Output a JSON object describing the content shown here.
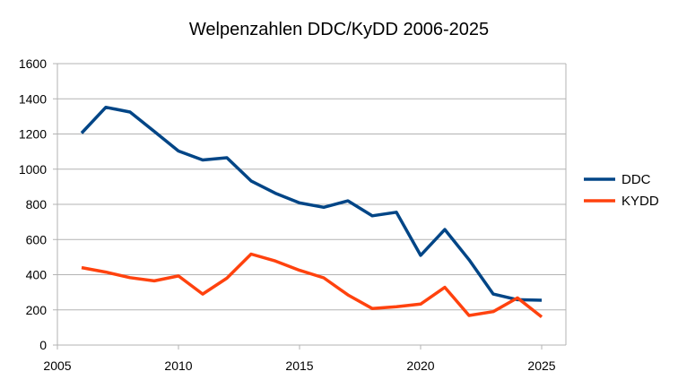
{
  "chart_data": {
    "type": "line",
    "title": "Welpenzahlen DDC/KyDD 2006-2025",
    "xlabel": "",
    "ylabel": "",
    "xlim": [
      2005,
      2026
    ],
    "ylim": [
      0,
      1600
    ],
    "x_ticks": [
      2005,
      2010,
      2015,
      2020,
      2025
    ],
    "y_ticks": [
      0,
      200,
      400,
      600,
      800,
      1000,
      1200,
      1400,
      1600
    ],
    "grid": true,
    "legend_position": "right",
    "x": [
      2006,
      2007,
      2008,
      2009,
      2010,
      2011,
      2012,
      2013,
      2014,
      2015,
      2016,
      2017,
      2018,
      2019,
      2020,
      2021,
      2022,
      2023,
      2024,
      2025
    ],
    "series": [
      {
        "name": "DDC",
        "color": "#004586",
        "values": [
          1205,
          1352,
          1325,
          1215,
          1103,
          1052,
          1065,
          933,
          863,
          808,
          783,
          820,
          735,
          755,
          510,
          657,
          485,
          290,
          258,
          255
        ]
      },
      {
        "name": "KYDD",
        "color": "#ff420e",
        "values": [
          440,
          415,
          383,
          365,
          393,
          290,
          380,
          517,
          478,
          425,
          382,
          285,
          208,
          218,
          233,
          328,
          168,
          190,
          268,
          160
        ]
      }
    ]
  }
}
